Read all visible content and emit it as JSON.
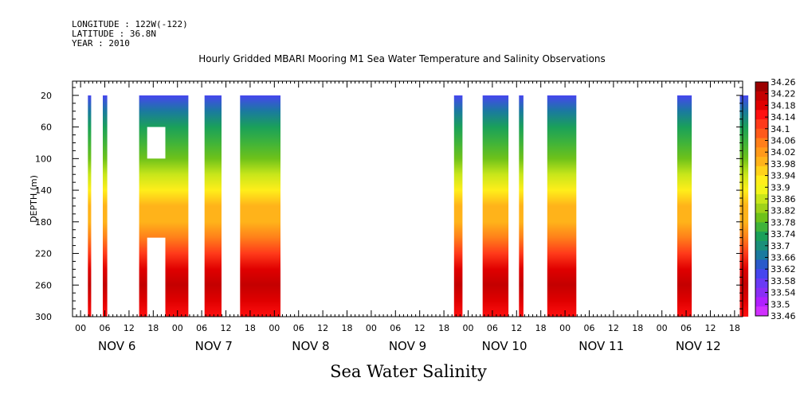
{
  "header": {
    "longitude": "LONGITUDE : 122W(-122)",
    "latitude": "LATITUDE : 36.8N",
    "year": "YEAR : 2010"
  },
  "chart_data": {
    "type": "heatmap",
    "title": "Hourly Gridded MBARI Mooring M1 Sea Water Temperature and Salinity Observations",
    "xlabel": "Sea Water Salinity",
    "ylabel": "DEPTH (m)",
    "x_unit": "hours from 2010-11-06 00:00",
    "xlim": [
      -2,
      164
    ],
    "ylim": [
      300,
      2
    ],
    "y_ticks": [
      20,
      60,
      100,
      140,
      180,
      220,
      260,
      300
    ],
    "x_tick_labels": [
      {
        "h": 0,
        "label": "00"
      },
      {
        "h": 6,
        "label": "06"
      },
      {
        "h": 12,
        "label": "12"
      },
      {
        "h": 18,
        "label": "18"
      },
      {
        "h": 24,
        "label": "00"
      },
      {
        "h": 30,
        "label": "06"
      },
      {
        "h": 36,
        "label": "12"
      },
      {
        "h": 42,
        "label": "18"
      },
      {
        "h": 48,
        "label": "00"
      },
      {
        "h": 54,
        "label": "06"
      },
      {
        "h": 60,
        "label": "12"
      },
      {
        "h": 66,
        "label": "18"
      },
      {
        "h": 72,
        "label": "00"
      },
      {
        "h": 78,
        "label": "06"
      },
      {
        "h": 84,
        "label": "12"
      },
      {
        "h": 90,
        "label": "18"
      },
      {
        "h": 96,
        "label": "00"
      },
      {
        "h": 102,
        "label": "06"
      },
      {
        "h": 108,
        "label": "12"
      },
      {
        "h": 114,
        "label": "18"
      },
      {
        "h": 120,
        "label": "00"
      },
      {
        "h": 126,
        "label": "06"
      },
      {
        "h": 132,
        "label": "12"
      },
      {
        "h": 138,
        "label": "18"
      },
      {
        "h": 144,
        "label": "00"
      },
      {
        "h": 150,
        "label": "06"
      },
      {
        "h": 156,
        "label": "12"
      },
      {
        "h": 162,
        "label": "18"
      }
    ],
    "day_labels": [
      {
        "h": 9,
        "label": "NOV  6"
      },
      {
        "h": 33,
        "label": "NOV  7"
      },
      {
        "h": 57,
        "label": "NOV  8"
      },
      {
        "h": 81,
        "label": "NOV  9"
      },
      {
        "h": 105,
        "label": "NOV 10"
      },
      {
        "h": 129,
        "label": "NOV 11"
      },
      {
        "h": 153,
        "label": "NOV 12"
      }
    ],
    "colorbar_labels": [
      "34.26",
      "34.22",
      "34.18",
      "34.14",
      "34.1",
      "34.06",
      "34.02",
      "33.98",
      "33.94",
      "33.9",
      "33.86",
      "33.82",
      "33.78",
      "33.74",
      "33.7",
      "33.66",
      "33.62",
      "33.58",
      "33.54",
      "33.5",
      "33.46"
    ],
    "colorbar_colors": [
      "#9b0000",
      "#c40000",
      "#e00000",
      "#ff1010",
      "#ff3a1a",
      "#ff5a1a",
      "#ff7f1a",
      "#ff9a1a",
      "#ffb31a",
      "#ffd21a",
      "#ffee1a",
      "#f2f51a",
      "#c8e61a",
      "#9fd21a",
      "#6ec21a",
      "#3fb33a",
      "#1aa05a",
      "#1a8f7a",
      "#1a7a9f",
      "#2a5acb",
      "#4646ee",
      "#6a3af5",
      "#8a2ef5",
      "#b020ff",
      "#d030ff"
    ],
    "profile_salinity": [
      {
        "depth": 20,
        "value": 33.6
      },
      {
        "depth": 40,
        "value": 33.66
      },
      {
        "depth": 60,
        "value": 33.72
      },
      {
        "depth": 80,
        "value": 33.76
      },
      {
        "depth": 100,
        "value": 33.8
      },
      {
        "depth": 120,
        "value": 33.86
      },
      {
        "depth": 140,
        "value": 33.92
      },
      {
        "depth": 160,
        "value": 33.98
      },
      {
        "depth": 180,
        "value": 34.0
      },
      {
        "depth": 200,
        "value": 34.05
      },
      {
        "depth": 220,
        "value": 34.12
      },
      {
        "depth": 240,
        "value": 34.2
      },
      {
        "depth": 260,
        "value": 34.24
      },
      {
        "depth": 280,
        "value": 34.2
      },
      {
        "depth": 300,
        "value": 34.16
      }
    ],
    "data_segments": [
      {
        "start": 1.8,
        "end": 2.6
      },
      {
        "start": 5.5,
        "end": 6.6
      },
      {
        "start": 14.5,
        "end": 26.7
      },
      {
        "start": 30.7,
        "end": 34.9
      },
      {
        "start": 39.5,
        "end": 49.5
      },
      {
        "start": 92.5,
        "end": 94.6
      },
      {
        "start": 99.6,
        "end": 106.0
      },
      {
        "start": 108.6,
        "end": 109.7
      },
      {
        "start": 115.6,
        "end": 122.8
      },
      {
        "start": 147.8,
        "end": 151.4
      },
      {
        "start": 163.3,
        "end": 165.4
      }
    ],
    "data_gaps": [
      {
        "start": 16.5,
        "end": 21.0,
        "depth_top": 60,
        "depth_bottom": 100
      },
      {
        "start": 16.5,
        "end": 21.0,
        "depth_top": 200,
        "depth_bottom": 300
      }
    ]
  }
}
